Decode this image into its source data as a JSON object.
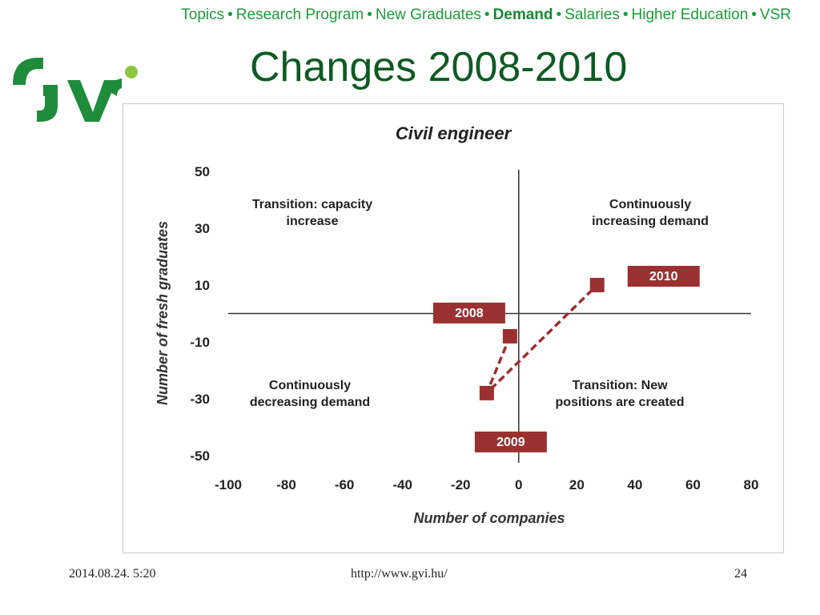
{
  "nav": {
    "items": [
      "Topics",
      "Research Program",
      "New Graduates",
      "Demand",
      "Salaries",
      "Higher Education",
      "VSR"
    ],
    "active": "Demand",
    "separator": "•",
    "color": "#1e9a3a"
  },
  "slide": {
    "title": "Changes 2008-2010"
  },
  "logo": {
    "icon": "gvi-logo-icon",
    "color": "#1e8c3a",
    "dot_color": "#8cc63f"
  },
  "chart_data": {
    "type": "scatter",
    "title": "Civil engineer",
    "xlabel": "Number of companies",
    "ylabel": "Number of fresh graduates",
    "xlim": [
      -100,
      80
    ],
    "ylim": [
      -50,
      50
    ],
    "x_ticks": [
      "-100",
      "-80",
      "-60",
      "-40",
      "-20",
      "0",
      "20",
      "40",
      "60",
      "80"
    ],
    "y_ticks": [
      "50",
      "30",
      "10",
      "-10",
      "-30",
      "-50"
    ],
    "series": [
      {
        "points": [
          {
            "x": -3,
            "y": -8,
            "label": "2008"
          },
          {
            "x": -11,
            "y": -28,
            "label": "2009"
          },
          {
            "x": 27,
            "y": 10,
            "label": "2010"
          }
        ],
        "line": "dashed"
      }
    ],
    "quadrants": [
      {
        "position": "top-left",
        "lines": [
          "Transition: capacity",
          "increase"
        ]
      },
      {
        "position": "top-right",
        "lines": [
          "Continuously",
          "increasing demand"
        ]
      },
      {
        "position": "bottom-left",
        "lines": [
          "Continuously",
          "decreasing demand"
        ]
      },
      {
        "position": "bottom-right",
        "lines": [
          "Transition: New",
          "positions are created"
        ]
      }
    ],
    "marker_color": "#9b3030",
    "grid": false
  },
  "footer": {
    "date": "2014.08.24. 5:20",
    "url": "http://www.gvi.hu/",
    "page": "24"
  }
}
